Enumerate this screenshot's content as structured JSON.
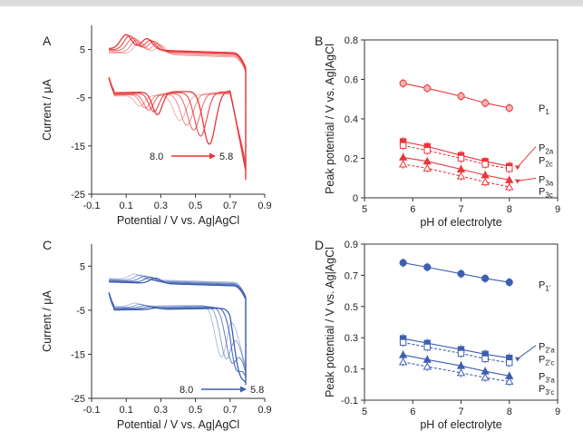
{
  "chart_data": [
    {
      "type": "line",
      "panel_label": "A",
      "xlabel": "Potential / V vs. Ag|AgCl",
      "ylabel": "Current / μA",
      "xlim": [
        -0.1,
        0.9
      ],
      "ylim": [
        -25,
        10
      ],
      "xticks": [
        "-0.1",
        "0.1",
        "0.3",
        "0.5",
        "0.7",
        "0.9"
      ],
      "yticks": [
        "5",
        "-5",
        "-15",
        "-25"
      ],
      "color": "#e8373a",
      "annotation": {
        "from": "8.0",
        "to": "5.8"
      },
      "series": [
        {
          "ph": 8.0,
          "ox_peaks": [
            [
              0.1,
              8.2
            ],
            [
              0.22,
              7.5
            ]
          ],
          "red_peaks": [
            [
              0.28,
              -8.2
            ],
            [
              0.58,
              -14.5
            ]
          ],
          "plateau_top": 5.2,
          "plateau_bottom": -3.5
        },
        {
          "ph": 7.5,
          "ox_peaks": [
            [
              0.12,
              8.0
            ],
            [
              0.24,
              7.2
            ]
          ],
          "red_peaks": [
            [
              0.26,
              -7.6
            ],
            [
              0.53,
              -12.8
            ]
          ],
          "plateau_top": 5.0,
          "plateau_bottom": -3.7
        },
        {
          "ph": 7.0,
          "ox_peaks": [
            [
              0.14,
              7.6
            ],
            [
              0.26,
              7.0
            ]
          ],
          "red_peaks": [
            [
              0.23,
              -7.2
            ],
            [
              0.49,
              -11.5
            ]
          ],
          "plateau_top": 4.8,
          "plateau_bottom": -3.9
        },
        {
          "ph": 6.3,
          "ox_peaks": [
            [
              0.16,
              7.2
            ],
            [
              0.28,
              6.6
            ]
          ],
          "red_peaks": [
            [
              0.21,
              -6.8
            ],
            [
              0.45,
              -10.5
            ]
          ],
          "plateau_top": 4.5,
          "plateau_bottom": -4.0
        },
        {
          "ph": 5.8,
          "ox_peaks": [
            [
              0.18,
              6.8
            ],
            [
              0.3,
              6.2
            ]
          ],
          "red_peaks": [
            [
              0.18,
              -6.4
            ],
            [
              0.41,
              -9.5
            ]
          ],
          "plateau_top": 4.3,
          "plateau_bottom": -4.2
        }
      ]
    },
    {
      "type": "scatter",
      "panel_label": "B",
      "xlabel": "pH of electrolyte",
      "ylabel": "Peak potential / V vs. Ag|AgCl",
      "xlim": [
        5,
        9
      ],
      "ylim": [
        0,
        0.8
      ],
      "xticks": [
        "5",
        "6",
        "7",
        "8",
        "9"
      ],
      "yticks": [
        "0",
        "0.2",
        "0.4",
        "0.6",
        "0.8"
      ],
      "color": "#e8373a",
      "x": [
        5.8,
        6.3,
        7.0,
        7.5,
        8.0
      ],
      "series": [
        {
          "name": "P1",
          "base": "P",
          "sub": "1",
          "marker": "circle",
          "filled": false,
          "dashed": false,
          "values": [
            0.58,
            0.555,
            0.515,
            0.48,
            0.455
          ],
          "label_y": 0.455
        },
        {
          "name": "P2a",
          "base": "P",
          "sub": "2a",
          "marker": "square",
          "filled": true,
          "dashed": false,
          "values": [
            0.285,
            0.26,
            0.215,
            0.185,
            0.16
          ],
          "label_y": 0.255,
          "arrow": true
        },
        {
          "name": "P2c",
          "base": "P",
          "sub": "2c",
          "marker": "square",
          "filled": false,
          "dashed": true,
          "values": [
            0.265,
            0.24,
            0.2,
            0.17,
            0.148
          ],
          "label_y": 0.19
        },
        {
          "name": "P3a",
          "base": "P",
          "sub": "3a",
          "marker": "triangle",
          "filled": true,
          "dashed": false,
          "values": [
            0.205,
            0.185,
            0.145,
            0.115,
            0.09
          ],
          "label_y": 0.095,
          "arrow": true
        },
        {
          "name": "P3c",
          "base": "P",
          "sub": "3c",
          "marker": "triangle",
          "filled": false,
          "dashed": true,
          "values": [
            0.17,
            0.15,
            0.11,
            0.08,
            0.055
          ],
          "label_y": 0.035
        }
      ]
    },
    {
      "type": "line",
      "panel_label": "C",
      "xlabel": "Potential / V vs. Ag|AgCl",
      "ylabel": "Current / μA",
      "xlim": [
        -0.1,
        0.9
      ],
      "ylim": [
        -25,
        10
      ],
      "xticks": [
        "-0.1",
        "0.1",
        "0.3",
        "0.5",
        "0.7",
        "0.9"
      ],
      "yticks": [
        "5",
        "-5",
        "-15",
        "-25"
      ],
      "color": "#3d5fb0",
      "annotation": {
        "from": "8.0",
        "to": "5.8"
      },
      "series": [
        {
          "ph": 8.0,
          "ox_peaks": [
            [
              0.27,
              2.6
            ]
          ],
          "red_peaks": [
            [
              0.27,
              -4.2
            ],
            [
              0.77,
              -17.5
            ]
          ],
          "plateau_top": 1.4,
          "plateau_bottom": -4.5
        },
        {
          "ph": 7.5,
          "ox_peaks": [
            [
              0.24,
              2.8
            ]
          ],
          "red_peaks": [
            [
              0.24,
              -3.9
            ],
            [
              0.74,
              -17.0
            ]
          ],
          "plateau_top": 1.6,
          "plateau_bottom": -4.3
        },
        {
          "ph": 7.0,
          "ox_peaks": [
            [
              0.21,
              3.0
            ]
          ],
          "red_peaks": [
            [
              0.21,
              -3.6
            ],
            [
              0.71,
              -16.5
            ]
          ],
          "plateau_top": 1.8,
          "plateau_bottom": -4.1
        },
        {
          "ph": 6.3,
          "ox_peaks": [
            [
              0.18,
              3.2
            ]
          ],
          "red_peaks": [
            [
              0.18,
              -3.3
            ],
            [
              0.68,
              -16.0
            ]
          ],
          "plateau_top": 2.0,
          "plateau_bottom": -3.9
        },
        {
          "ph": 5.8,
          "ox_peaks": [
            [
              0.15,
              3.4
            ]
          ],
          "red_peaks": [
            [
              0.15,
              -3.0
            ],
            [
              0.65,
              -15.5
            ]
          ],
          "plateau_top": 2.2,
          "plateau_bottom": -3.7
        }
      ]
    },
    {
      "type": "scatter",
      "panel_label": "D",
      "xlabel": "pH of electrolyte",
      "ylabel": "Peak potential / V vs. Ag|AgCl",
      "xlim": [
        5,
        9
      ],
      "ylim": [
        -0.1,
        0.9
      ],
      "xticks": [
        "5",
        "6",
        "7",
        "8",
        "9"
      ],
      "yticks": [
        "-0.1",
        "0.1",
        "0.3",
        "0.5",
        "0.7",
        "0.9"
      ],
      "color": "#3d5fb0",
      "x": [
        5.8,
        6.3,
        7.0,
        7.5,
        8.0
      ],
      "series": [
        {
          "name": "P1'",
          "base": "P",
          "sub": "1'",
          "marker": "circle",
          "filled": true,
          "dashed": false,
          "values": [
            0.78,
            0.752,
            0.71,
            0.68,
            0.655
          ],
          "label_y": 0.64
        },
        {
          "name": "P2'a",
          "base": "P",
          "sub": "2'a",
          "marker": "square",
          "filled": true,
          "dashed": false,
          "values": [
            0.295,
            0.265,
            0.225,
            0.195,
            0.17
          ],
          "label_y": 0.245,
          "arrow": true
        },
        {
          "name": "P2'c",
          "base": "P",
          "sub": "2'c",
          "marker": "square",
          "filled": false,
          "dashed": true,
          "values": [
            0.27,
            0.24,
            0.2,
            0.165,
            0.14
          ],
          "label_y": 0.165
        },
        {
          "name": "P3'a",
          "base": "P",
          "sub": "3'a",
          "marker": "triangle",
          "filled": true,
          "dashed": false,
          "values": [
            0.19,
            0.16,
            0.12,
            0.085,
            0.055
          ],
          "label_y": 0.055
        },
        {
          "name": "P3'c",
          "base": "P",
          "sub": "3'c",
          "marker": "triangle",
          "filled": false,
          "dashed": true,
          "values": [
            0.145,
            0.115,
            0.075,
            0.045,
            0.02
          ],
          "label_y": -0.025
        }
      ]
    }
  ]
}
